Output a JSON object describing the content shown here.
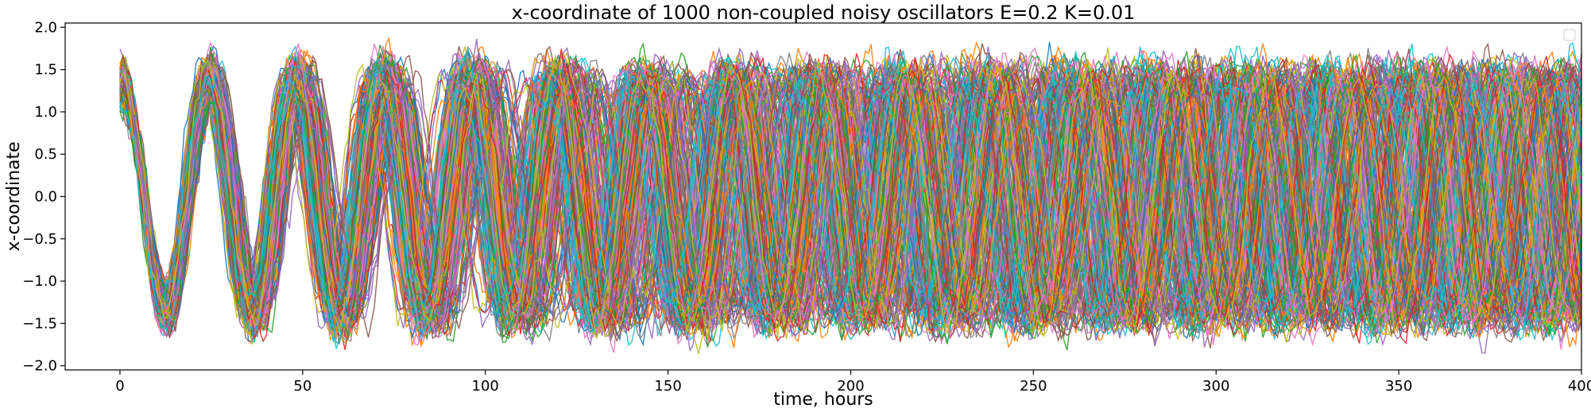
{
  "chart_data": {
    "type": "line",
    "title": "x-coordinate of 1000 non-coupled noisy oscillators E=0.2 K=0.01",
    "xlabel": "time, hours",
    "ylabel": "x-coordinate",
    "xlim": [
      -15,
      400
    ],
    "ylim": [
      -2.05,
      2.05
    ],
    "xticks": [
      0,
      50,
      100,
      150,
      200,
      250,
      300,
      350,
      400
    ],
    "yticks": [
      -2.0,
      -1.5,
      -1.0,
      -0.5,
      0.0,
      0.5,
      1.0,
      1.5,
      2.0
    ],
    "ytick_labels": [
      "−2.0",
      "−1.5",
      "−1.0",
      "−0.5",
      "0.0",
      "0.5",
      "1.0",
      "1.5",
      "2.0"
    ],
    "n_series": 1000,
    "series_note": "1000 overlapping noisy oscillator trajectories starting near x=1.0 at t=0, period about 24 hours, amplitude about 1.3 to 1.5, phases gradually spreading over time",
    "period_hours": 24,
    "start_value": 1.0,
    "amplitude_range": [
      1.2,
      1.55
    ],
    "legend": "top-right (empty)",
    "grid": false,
    "colors": [
      "#1f77b4",
      "#ff7f0e",
      "#2ca02c",
      "#d62728",
      "#9467bd",
      "#8c564b",
      "#e377c2",
      "#7f7f7f",
      "#bcbd22",
      "#17becf"
    ]
  }
}
